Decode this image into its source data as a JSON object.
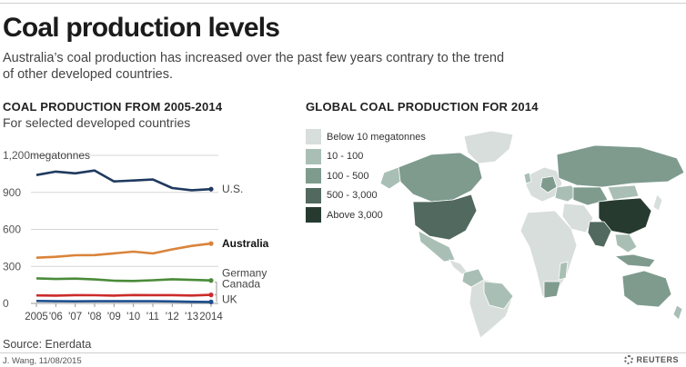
{
  "header": {
    "title": "Coal production levels",
    "subtitle": "Australia’s coal production has increased over the past few years contrary to the trend of other developed countries."
  },
  "left_panel": {
    "heading": "COAL PRODUCTION FROM 2005-2014",
    "subheading": "For selected developed countries"
  },
  "right_panel": {
    "heading": "GLOBAL COAL PRODUCTION FOR 2014",
    "legend": [
      {
        "label": "Below 10 megatonnes",
        "color": "#d8dedb"
      },
      {
        "label": "10 - 100",
        "color": "#a9bfb5"
      },
      {
        "label": "100 - 500",
        "color": "#7e9b8e"
      },
      {
        "label": "500 - 3,000",
        "color": "#52695f"
      },
      {
        "label": "Above 3,000",
        "color": "#263a30"
      }
    ]
  },
  "chart_data": {
    "type": "line",
    "title": "COAL PRODUCTION FROM 2005-2014",
    "subtitle": "For selected developed countries",
    "ylabel": "megatonnes",
    "x": [
      "2005",
      "'06",
      "'07",
      "'08",
      "'09",
      "'10",
      "'11",
      "'12",
      "'13",
      "2014"
    ],
    "y_ticks": [
      "0",
      "300",
      "600",
      "900",
      "1,200"
    ],
    "ylim": [
      0,
      1200
    ],
    "grid": true,
    "series": [
      {
        "name": "U.S.",
        "color": "#1f3a5f",
        "values": [
          1040,
          1068,
          1054,
          1077,
          989,
          996,
          1004,
          935,
          917,
          926
        ]
      },
      {
        "name": "Australia",
        "color": "#d9843a",
        "values": [
          370,
          378,
          390,
          392,
          406,
          420,
          405,
          438,
          466,
          485
        ]
      },
      {
        "name": "Germany",
        "color": "#4a8b3a",
        "values": [
          203,
          198,
          201,
          194,
          184,
          182,
          188,
          196,
          191,
          186
        ]
      },
      {
        "name": "Canada",
        "color": "#cc2b2b",
        "values": [
          65,
          63,
          67,
          66,
          63,
          68,
          67,
          67,
          64,
          69
        ]
      },
      {
        "name": "UK",
        "color": "#1f4f8f",
        "values": [
          20,
          18,
          17,
          18,
          18,
          18,
          18,
          16,
          13,
          12
        ]
      }
    ]
  },
  "footer": {
    "source": "Source: Enerdata",
    "credit": "J. Wang, 11/08/2015",
    "brand": "REUTERS"
  }
}
